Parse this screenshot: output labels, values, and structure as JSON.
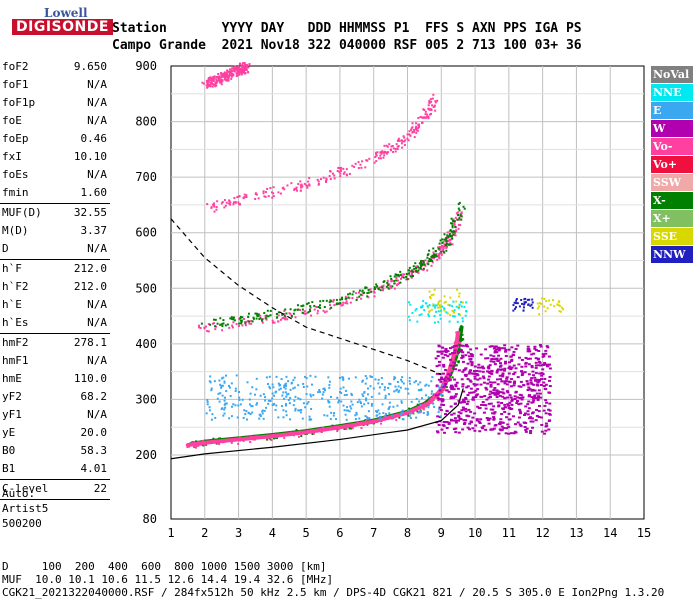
{
  "logo": {
    "line1": "Lowell",
    "line2": "DIGISONDE"
  },
  "header": {
    "row1": "Station       YYYY DAY   DDD HHMMSS P1  FFS S AXN PPS IGA PS",
    "row2": "Campo Grande  2021 Nov18 322 040000 RSF 005 2 713 100 03+ 36"
  },
  "params": [
    [
      {
        "label": "foF2",
        "value": "9.650"
      },
      {
        "label": "foF1",
        "value": "N/A"
      },
      {
        "label": "foF1p",
        "value": "N/A"
      },
      {
        "label": "foE",
        "value": "N/A"
      },
      {
        "label": "foEp",
        "value": "0.46"
      },
      {
        "label": "fxI",
        "value": "10.10"
      },
      {
        "label": "foEs",
        "value": "N/A"
      },
      {
        "label": "fmin",
        "value": "1.60"
      }
    ],
    [
      {
        "label": "MUF(D)",
        "value": "32.55"
      },
      {
        "label": "M(D)",
        "value": "3.37"
      },
      {
        "label": "D",
        "value": "N/A"
      }
    ],
    [
      {
        "label": "h`F",
        "value": "212.0"
      },
      {
        "label": "h`F2",
        "value": "212.0"
      },
      {
        "label": "h`E",
        "value": "N/A"
      },
      {
        "label": "h`Es",
        "value": "N/A"
      }
    ],
    [
      {
        "label": "hmF2",
        "value": "278.1"
      },
      {
        "label": "hmF1",
        "value": "N/A"
      },
      {
        "label": "hmE",
        "value": "110.0"
      },
      {
        "label": "yF2",
        "value": "68.2"
      },
      {
        "label": "yF1",
        "value": "N/A"
      },
      {
        "label": "yE",
        "value": "20.0"
      },
      {
        "label": "B0",
        "value": "58.3"
      },
      {
        "label": "B1",
        "value": "4.01"
      }
    ],
    [
      {
        "label": "C-level",
        "value": "22"
      }
    ]
  ],
  "auto": {
    "line1": "Auto:",
    "line2": "Artist5",
    "line3": "500200"
  },
  "legend": [
    {
      "label": "NoVal",
      "color": "#808080"
    },
    {
      "label": "NNE",
      "color": "#00e8f0"
    },
    {
      "label": "E",
      "color": "#3aa8f0"
    },
    {
      "label": "W",
      "color": "#b000b0"
    },
    {
      "label": "Vo-",
      "color": "#ff40a0"
    },
    {
      "label": "Vo+",
      "color": "#f01040"
    },
    {
      "label": "SSW",
      "color": "#f0a8a8"
    },
    {
      "label": "X-",
      "color": "#008000"
    },
    {
      "label": "X+",
      "color": "#80c060"
    },
    {
      "label": "SSE",
      "color": "#d8d800"
    },
    {
      "label": "NNW",
      "color": "#2020c0"
    }
  ],
  "footer": {
    "line1": "D     100  200  400  600  800 1000 1500 3000 [km]",
    "line2": "MUF  10.0 10.1 10.6 11.5 12.6 14.4 19.4 32.6 [MHz]",
    "line3": "CGK21_2021322040000.RSF / 284fx512h 50 kHz 2.5 km / DPS-4D CGK21 821 / 20.5 S 305.0 E Ion2Png 1.3.20"
  },
  "chart_data": {
    "type": "scatter",
    "xlim": [
      1,
      15
    ],
    "ylim": [
      80,
      900
    ],
    "x_ticks": [
      "1",
      "2",
      "3",
      "4",
      "5",
      "6",
      "7",
      "8",
      "9",
      "10",
      "11",
      "12",
      "13",
      "14",
      "15"
    ],
    "y_ticks": [
      "900",
      "800",
      "700",
      "600",
      "500",
      "400",
      "300",
      "200",
      "80"
    ],
    "grid": true,
    "series": [
      {
        "color_key": "X-",
        "style": "line",
        "x": [
          1.6,
          2,
          3,
          4,
          5,
          6,
          7,
          8,
          8.5,
          9,
          9.3,
          9.5,
          9.6
        ],
        "y": [
          220,
          224,
          230,
          236,
          243,
          252,
          262,
          278,
          292,
          315,
          350,
          390,
          430
        ]
      },
      {
        "color_key": "Vo-",
        "style": "line",
        "x": [
          1.5,
          2,
          3,
          4,
          5,
          6,
          7,
          8,
          8.6,
          9,
          9.2,
          9.4,
          9.5
        ],
        "y": [
          218,
          222,
          228,
          234,
          241,
          250,
          260,
          276,
          292,
          318,
          345,
          385,
          420
        ]
      },
      {
        "color_key": "Vo-",
        "style": "trace",
        "x": [
          1.8,
          3,
          4,
          5,
          6,
          7,
          7.5,
          8,
          8.5,
          9,
          9.3,
          9.55
        ],
        "y": [
          430,
          440,
          448,
          460,
          475,
          495,
          510,
          525,
          545,
          570,
          600,
          640
        ]
      },
      {
        "color_key": "X-",
        "style": "trace",
        "x": [
          1.9,
          3,
          4,
          5,
          6,
          7,
          8,
          8.5,
          9,
          9.3,
          9.6
        ],
        "y": [
          438,
          446,
          454,
          465,
          480,
          500,
          530,
          550,
          575,
          605,
          650
        ]
      },
      {
        "color_key": "Vo-",
        "style": "trace",
        "x": [
          2,
          3,
          4,
          5,
          6,
          7,
          7.5,
          8,
          8.3,
          8.6,
          8.8
        ],
        "y": [
          645,
          660,
          675,
          690,
          710,
          735,
          755,
          775,
          795,
          820,
          845
        ]
      },
      {
        "color_key": "Vo-",
        "style": "trace",
        "x": [
          2,
          2.5,
          3,
          3.2
        ],
        "y": [
          870,
          880,
          895,
          900
        ]
      },
      {
        "color_key": "W",
        "style": "cloud",
        "x": [
          8.8,
          10,
          11,
          12.2
        ],
        "y": [
          270,
          310,
          330,
          370
        ]
      },
      {
        "color_key": "E",
        "style": "cloud",
        "x": [
          2,
          4,
          6,
          8,
          9
        ],
        "y": [
          280,
          300,
          310,
          320,
          330
        ]
      }
    ],
    "dashed_curve": {
      "x": [
        1,
        2,
        3,
        4,
        5,
        6,
        7,
        8,
        9
      ],
      "y": [
        625,
        555,
        505,
        465,
        430,
        410,
        390,
        370,
        345
      ]
    },
    "profile_curve": {
      "x": [
        1,
        2,
        4,
        6,
        8,
        9,
        9.5,
        9.65
      ],
      "y": [
        193,
        202,
        214,
        228,
        245,
        262,
        290,
        320
      ]
    }
  }
}
